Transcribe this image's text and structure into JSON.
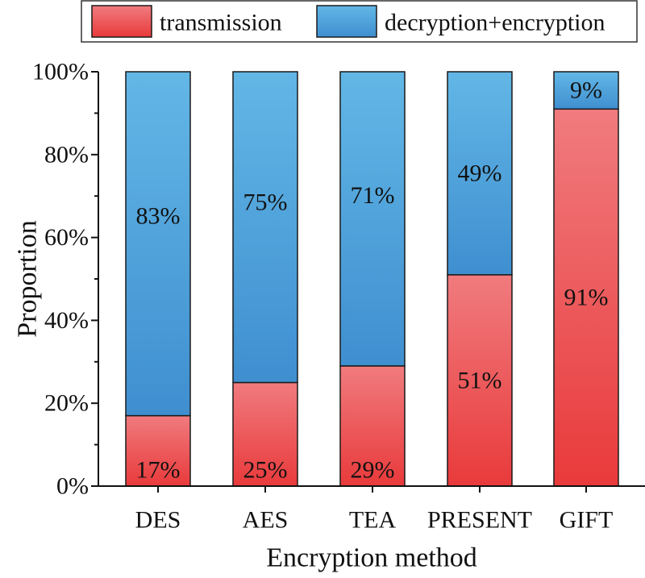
{
  "chart_data": {
    "type": "bar",
    "stacked": true,
    "categories": [
      "DES",
      "AES",
      "TEA",
      "PRESENT",
      "GIFT"
    ],
    "series": [
      {
        "name": "transmission",
        "values": [
          17,
          25,
          29,
          51,
          91
        ],
        "labels": [
          "17%",
          "25%",
          "29%",
          "51%",
          "91%"
        ],
        "color_top": "#f07b7e",
        "color_bottom": "#e93a3b"
      },
      {
        "name": "decryption+encryption",
        "values": [
          83,
          75,
          71,
          49,
          9
        ],
        "labels": [
          "83%",
          "75%",
          "71%",
          "49%",
          "9%"
        ],
        "color_top": "#62b7e6",
        "color_bottom": "#3f8fd0"
      }
    ],
    "title": "",
    "xlabel": "Encryption method",
    "ylabel": "Proportion",
    "ylim": [
      0,
      100
    ],
    "yticks": [
      0,
      20,
      40,
      60,
      80,
      100
    ],
    "ytick_labels": [
      "0%",
      "20%",
      "40%",
      "60%",
      "80%",
      "100%"
    ],
    "grid": false,
    "legend_position": "top"
  }
}
